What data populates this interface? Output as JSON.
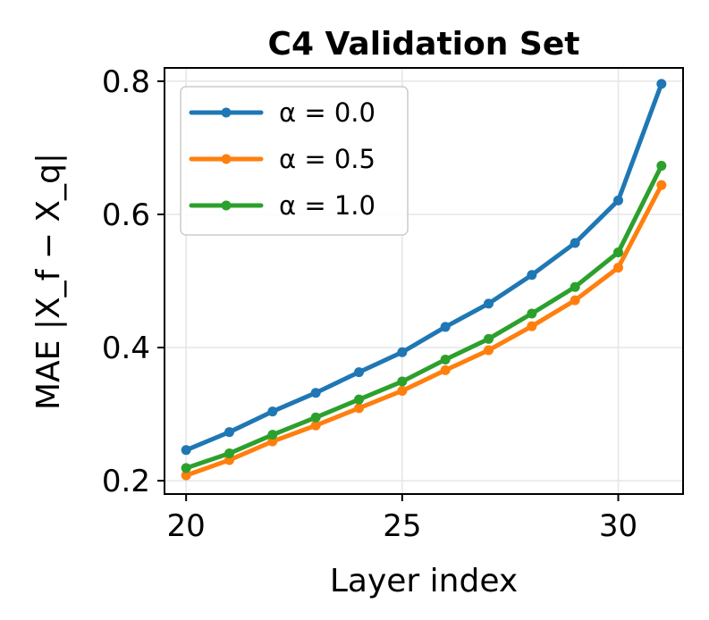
{
  "chart_data": {
    "type": "line",
    "title": "C4 Validation Set",
    "xlabel": "Layer index",
    "ylabel": "MAE |X_f − X_q|",
    "xlim": [
      19.5,
      31.5
    ],
    "ylim": [
      0.18,
      0.82
    ],
    "xticks": [
      20,
      25,
      30
    ],
    "xtick_labels": [
      "20",
      "25",
      "30"
    ],
    "yticks": [
      0.2,
      0.4,
      0.6,
      0.8
    ],
    "ytick_labels": [
      "0.2",
      "0.4",
      "0.6",
      "0.8"
    ],
    "grid": true,
    "legend_position": "top-left",
    "x": [
      20,
      21,
      22,
      23,
      24,
      25,
      26,
      27,
      28,
      29,
      30,
      31
    ],
    "series": [
      {
        "name": "α = 0.0",
        "color": "#1f77b4",
        "values": [
          0.246,
          0.273,
          0.304,
          0.332,
          0.363,
          0.393,
          0.431,
          0.466,
          0.509,
          0.557,
          0.621,
          0.796
        ]
      },
      {
        "name": "α = 0.5",
        "color": "#ff7f0e",
        "values": [
          0.208,
          0.231,
          0.259,
          0.283,
          0.309,
          0.335,
          0.366,
          0.396,
          0.432,
          0.471,
          0.52,
          0.644
        ]
      },
      {
        "name": "α = 1.0",
        "color": "#2ca02c",
        "values": [
          0.219,
          0.241,
          0.269,
          0.295,
          0.322,
          0.349,
          0.382,
          0.413,
          0.451,
          0.491,
          0.543,
          0.673
        ]
      }
    ]
  }
}
